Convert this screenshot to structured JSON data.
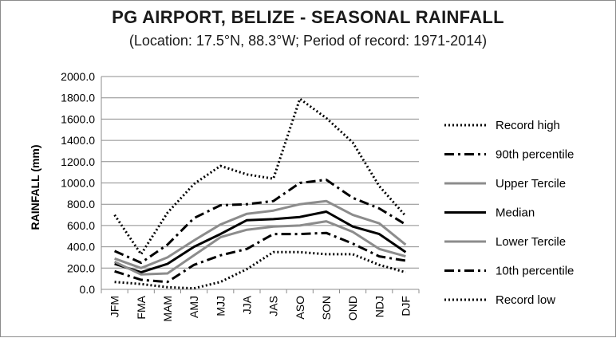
{
  "chart_data": {
    "type": "line",
    "title": "PG AIRPORT, BELIZE - SEASONAL RAINFALL",
    "subtitle": "(Location: 17.5°N, 88.3°W; Period of record: 1971-2014)",
    "xlabel": "",
    "ylabel": "RAINFALL (mm)",
    "ylim": [
      0,
      2000
    ],
    "yticks": [
      "0.0",
      "200.0",
      "400.0",
      "600.0",
      "800.0",
      "1000.0",
      "1200.0",
      "1400.0",
      "1600.0",
      "1800.0",
      "2000.0"
    ],
    "categories": [
      "JFM",
      "FMA",
      "MAM",
      "AMJ",
      "MJJ",
      "JJA",
      "JAS",
      "ASO",
      "SON",
      "OND",
      "NDJ",
      "DJF"
    ],
    "grid": true,
    "legend_position": "right",
    "series": [
      {
        "name": "Record high",
        "color": "#000000",
        "style": "dotted",
        "values": [
          700,
          330,
          720,
          990,
          1160,
          1080,
          1040,
          1790,
          1610,
          1380,
          970,
          690
        ]
      },
      {
        "name": "90th percentile",
        "color": "#000000",
        "style": "dashdot",
        "values": [
          360,
          250,
          420,
          670,
          790,
          800,
          830,
          1000,
          1030,
          860,
          760,
          610
        ]
      },
      {
        "name": "Upper Tercile",
        "color": "#8c8c8c",
        "style": "solid",
        "values": [
          290,
          200,
          300,
          460,
          610,
          710,
          740,
          800,
          830,
          700,
          620,
          420
        ]
      },
      {
        "name": "Median",
        "color": "#000000",
        "style": "solid",
        "values": [
          240,
          160,
          240,
          400,
          520,
          650,
          660,
          680,
          730,
          590,
          520,
          350
        ]
      },
      {
        "name": "Lower Tercile",
        "color": "#8c8c8c",
        "style": "solid",
        "values": [
          260,
          140,
          150,
          320,
          490,
          560,
          590,
          600,
          640,
          540,
          380,
          310
        ]
      },
      {
        "name": "10th percentile",
        "color": "#000000",
        "style": "dashdot",
        "values": [
          170,
          90,
          70,
          230,
          320,
          380,
          520,
          520,
          530,
          430,
          310,
          270
        ]
      },
      {
        "name": "Record low",
        "color": "#000000",
        "style": "dotted",
        "values": [
          70,
          50,
          20,
          10,
          70,
          190,
          350,
          350,
          330,
          330,
          230,
          160
        ]
      }
    ]
  }
}
